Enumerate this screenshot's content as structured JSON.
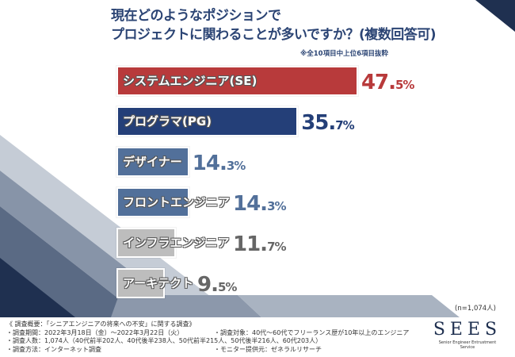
{
  "title_lines": [
    "現在どのようなポジションで",
    "プロジェクトに関わることが多いですか？(複数回答可)"
  ],
  "note": "※全10項目中上位6項目抜粋",
  "chart_data": {
    "type": "bar",
    "orientation": "horizontal",
    "categories": [
      "システムエンジニア(SE)",
      "プログラマ(PG)",
      "デザイナー",
      "フロントエンジニア",
      "インフラエンジニア",
      "アーキテクト"
    ],
    "values": [
      47.5,
      35.7,
      14.3,
      14.3,
      11.7,
      9.5
    ],
    "value_labels": [
      [
        "47.",
        "5%"
      ],
      [
        "35.",
        "7%"
      ],
      [
        "14.",
        "3%"
      ],
      [
        "14.",
        "3%"
      ],
      [
        "11.",
        "7%"
      ],
      [
        "9.",
        "5%"
      ]
    ],
    "unit": "%",
    "bar_colors": [
      "#b83a3b",
      "#243f78",
      "#52709a",
      "#52709a",
      "#bdbdbd",
      "#bdbdbd"
    ],
    "value_colors": [
      "#b83a3b",
      "#243f78",
      "#52709a",
      "#52709a",
      "#666666",
      "#666666"
    ],
    "sample": "(n=1,074人)"
  },
  "footer": {
    "heading": "《 調査概要：「シニアエンジニアの将来への不安」に関する調査》",
    "period": "・調査期間：2022年3月18日（金）〜2022年3月22日（火）",
    "target": "・調査対象：40代〜60代でフリーランス歴が10年以上のエンジニア",
    "count": "・調査人数：1,074人（40代前半202人、40代後半238人、50代前半215人、50代後半216人、60代203人）",
    "method": "・調査方法：インターネット調査",
    "provider": "・モニター提供元：ゼネラルリサーチ"
  },
  "logo": {
    "name": "SEES",
    "tagline": "Senior Engineer Entrustment Service"
  }
}
